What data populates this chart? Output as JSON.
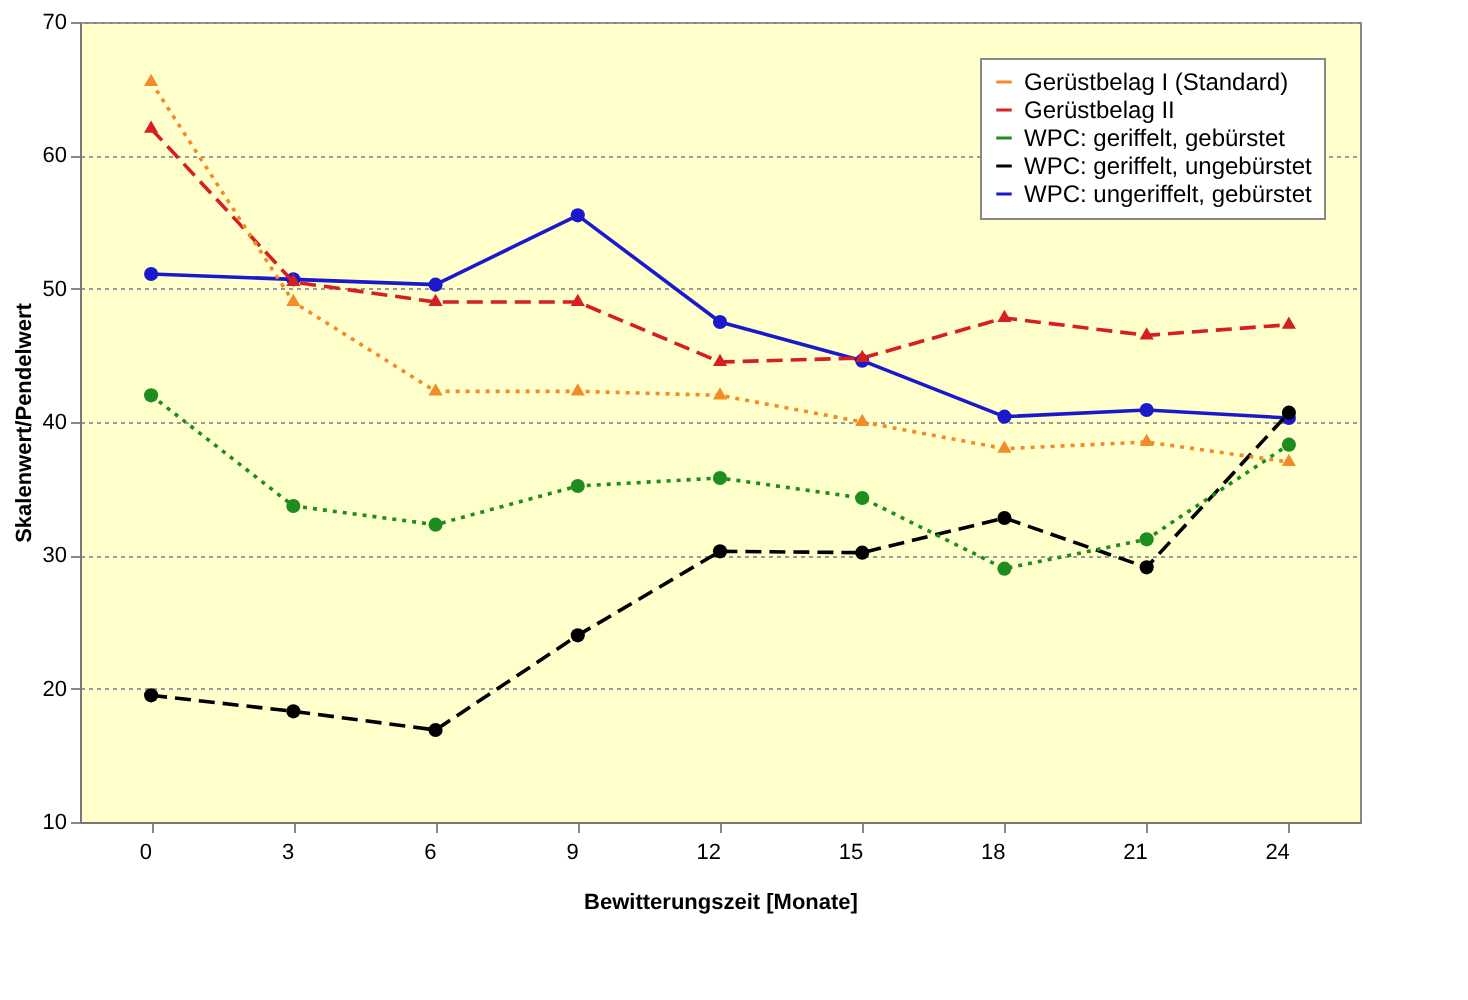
{
  "chart_data": {
    "type": "line",
    "xlabel": "Bewitterungszeit [Monate]",
    "ylabel": "Skalenwert/Pendelwert",
    "categories": [
      "0",
      "3",
      "6",
      "9",
      "12",
      "15",
      "18",
      "21",
      "24"
    ],
    "series": [
      {
        "name": "Gerüstbelag I (Standard)",
        "color": "#f28c28",
        "marker": "triangle",
        "line_style": "dotted",
        "values": [
          65.5,
          49,
          42.3,
          42.3,
          42,
          40,
          38,
          38.5,
          37
        ]
      },
      {
        "name": "Gerüstbelag II",
        "color": "#d42020",
        "marker": "triangle",
        "line_style": "dashed",
        "values": [
          62,
          50.5,
          49,
          49,
          44.5,
          44.8,
          47.8,
          46.5,
          47.3
        ]
      },
      {
        "name": "WPC: geriffelt, gebürstet",
        "color": "#1e8c1e",
        "marker": "circle",
        "line_style": "dotted",
        "values": [
          42,
          33.7,
          32.3,
          35.2,
          35.8,
          34.3,
          29,
          31.2,
          38.3
        ]
      },
      {
        "name": "WPC: geriffelt, ungebürstet",
        "color": "#000000",
        "marker": "circle",
        "line_style": "dashed",
        "values": [
          19.5,
          18.3,
          16.9,
          24,
          30.3,
          30.2,
          32.8,
          29.1,
          40.7
        ]
      },
      {
        "name": "WPC: ungeriffelt, gebürstet",
        "color": "#1a1acc",
        "marker": "circle",
        "line_style": "solid",
        "values": [
          51.1,
          50.7,
          50.3,
          55.5,
          47.5,
          44.6,
          40.4,
          40.9,
          40.3
        ]
      }
    ],
    "ylim": [
      10,
      70
    ],
    "yticks": [
      10,
      20,
      30,
      40,
      50,
      60,
      70
    ],
    "grid": "y",
    "legend": "top right"
  }
}
